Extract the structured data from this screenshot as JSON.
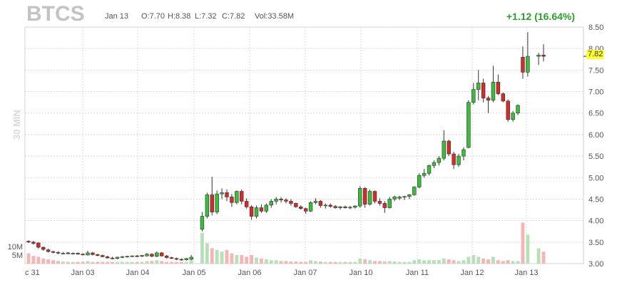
{
  "header": {
    "ticker": "BTCS",
    "date": "Jan 13",
    "open": "O:7.70",
    "high": "H:8.38",
    "low": "L:7.32",
    "close": "C:7.82",
    "volume": "Vol:33.58M",
    "change": "+1.12 (16.64%)",
    "timeframe": "30 MIN",
    "last_price": "7.82"
  },
  "colors": {
    "up": "#3cbc3c",
    "down": "#d42b2b",
    "up_vol": "#b9dfb9",
    "down_vol": "#f3b5b5",
    "grid": "#d8d8d8"
  },
  "chart_data": {
    "type": "candlestick",
    "ylim": [
      3.0,
      8.5
    ],
    "yticks": [
      "8.50",
      "8.00",
      "7.50",
      "7.00",
      "6.50",
      "6.00",
      "5.50",
      "5.00",
      "4.50",
      "4.00",
      "3.50",
      "3.00"
    ],
    "volume_ticks": [
      "10M",
      "5M"
    ],
    "xticks": [
      "c 31",
      "Jan 03",
      "Jan 04",
      "Jan 05",
      "Jan 06",
      "Jan 07",
      "Jan 10",
      "Jan 11",
      "Jan 12",
      "Jan 13"
    ],
    "candles": [
      [
        3.52,
        3.54,
        3.48,
        3.5,
        6.0
      ],
      [
        3.5,
        3.53,
        3.44,
        3.47,
        4.5
      ],
      [
        3.48,
        3.5,
        3.35,
        3.38,
        4.0
      ],
      [
        3.38,
        3.4,
        3.3,
        3.33,
        3.0
      ],
      [
        3.32,
        3.35,
        3.26,
        3.28,
        2.5
      ],
      [
        3.28,
        3.3,
        3.24,
        3.26,
        2.0
      ],
      [
        3.26,
        3.29,
        3.22,
        3.25,
        1.5
      ],
      [
        3.24,
        3.27,
        3.22,
        3.24,
        1.2
      ],
      [
        3.25,
        3.27,
        3.22,
        3.23,
        1.0
      ],
      [
        3.23,
        3.26,
        3.21,
        3.24,
        1.0
      ],
      [
        3.24,
        3.26,
        3.21,
        3.22,
        1.0
      ],
      [
        3.22,
        3.24,
        3.19,
        3.21,
        1.0
      ],
      [
        3.2,
        3.3,
        3.19,
        3.25,
        1.5
      ],
      [
        3.25,
        3.27,
        3.19,
        3.21,
        1.0
      ],
      [
        3.21,
        3.23,
        3.17,
        3.19,
        1.0
      ],
      [
        3.19,
        3.21,
        3.15,
        3.16,
        1.0
      ],
      [
        3.16,
        3.18,
        3.12,
        3.13,
        1.0
      ],
      [
        3.13,
        3.16,
        3.1,
        3.12,
        1.0
      ],
      [
        3.12,
        3.16,
        3.1,
        3.15,
        1.0
      ],
      [
        3.15,
        3.18,
        3.13,
        3.16,
        1.0
      ],
      [
        3.16,
        3.18,
        3.14,
        3.17,
        1.0
      ],
      [
        3.17,
        3.19,
        3.15,
        3.18,
        1.0
      ],
      [
        3.18,
        3.2,
        3.15,
        3.17,
        1.0
      ],
      [
        3.17,
        3.2,
        3.15,
        3.19,
        1.0
      ],
      [
        3.18,
        3.25,
        3.16,
        3.22,
        1.5
      ],
      [
        3.22,
        3.24,
        3.15,
        3.17,
        1.5
      ],
      [
        3.17,
        3.28,
        3.15,
        3.25,
        2.0
      ],
      [
        3.25,
        3.27,
        3.16,
        3.18,
        1.5
      ],
      [
        3.18,
        3.2,
        3.12,
        3.14,
        1.0
      ],
      [
        3.14,
        3.16,
        3.11,
        3.12,
        1.0
      ],
      [
        3.12,
        3.14,
        3.08,
        3.1,
        1.0
      ],
      [
        3.1,
        3.12,
        3.07,
        3.09,
        1.0
      ],
      [
        3.09,
        3.13,
        3.07,
        3.12,
        1.0
      ],
      [
        3.1,
        3.2,
        3.08,
        3.15,
        2.0
      ],
      [
        3.8,
        4.2,
        3.75,
        4.1,
        18.0
      ],
      [
        4.1,
        4.65,
        4.05,
        4.6,
        12.0
      ],
      [
        4.6,
        5.02,
        4.12,
        4.2,
        9.0
      ],
      [
        4.2,
        4.7,
        4.15,
        4.62,
        8.0
      ],
      [
        4.62,
        4.75,
        4.5,
        4.65,
        7.0
      ],
      [
        4.65,
        4.72,
        4.45,
        4.55,
        8.0
      ],
      [
        4.55,
        4.62,
        4.32,
        4.42,
        6.0
      ],
      [
        4.42,
        4.7,
        4.38,
        4.68,
        5.0
      ],
      [
        4.68,
        4.72,
        4.38,
        4.45,
        5.0
      ],
      [
        4.45,
        4.52,
        4.28,
        4.32,
        4.0
      ],
      [
        4.32,
        4.36,
        4.02,
        4.1,
        5.0
      ],
      [
        4.1,
        4.35,
        4.05,
        4.3,
        3.5
      ],
      [
        4.3,
        4.38,
        4.18,
        4.22,
        3.0
      ],
      [
        4.22,
        4.4,
        4.18,
        4.36,
        2.5
      ],
      [
        4.36,
        4.5,
        4.3,
        4.45,
        2.0
      ],
      [
        4.45,
        4.55,
        4.38,
        4.5,
        2.0
      ],
      [
        4.5,
        4.55,
        4.42,
        4.48,
        1.5
      ],
      [
        4.48,
        4.52,
        4.4,
        4.45,
        1.5
      ],
      [
        4.45,
        4.5,
        4.35,
        4.4,
        1.2
      ],
      [
        4.4,
        4.42,
        4.3,
        4.32,
        1.2
      ],
      [
        4.32,
        4.36,
        4.26,
        4.28,
        1.0
      ],
      [
        4.28,
        4.3,
        4.16,
        4.22,
        1.0
      ],
      [
        4.22,
        4.45,
        4.2,
        4.42,
        2.0
      ],
      [
        4.42,
        4.52,
        4.38,
        4.45,
        1.5
      ],
      [
        4.45,
        4.48,
        4.3,
        4.35,
        1.2
      ],
      [
        4.35,
        4.4,
        4.28,
        4.36,
        1.0
      ],
      [
        4.36,
        4.4,
        4.3,
        4.33,
        1.0
      ],
      [
        4.33,
        4.36,
        4.28,
        4.3,
        1.0
      ],
      [
        4.3,
        4.34,
        4.26,
        4.32,
        1.0
      ],
      [
        4.32,
        4.35,
        4.28,
        4.3,
        1.0
      ],
      [
        4.3,
        4.34,
        4.27,
        4.31,
        1.0
      ],
      [
        4.31,
        4.36,
        4.28,
        4.34,
        1.0
      ],
      [
        4.34,
        4.8,
        4.3,
        4.75,
        3.0
      ],
      [
        4.75,
        4.78,
        4.3,
        4.38,
        2.5
      ],
      [
        4.38,
        4.72,
        4.35,
        4.68,
        2.0
      ],
      [
        4.68,
        4.7,
        4.4,
        4.45,
        1.5
      ],
      [
        4.45,
        4.52,
        4.35,
        4.4,
        1.5
      ],
      [
        4.4,
        4.45,
        4.18,
        4.3,
        1.2
      ],
      [
        4.3,
        4.55,
        4.28,
        4.5,
        1.5
      ],
      [
        4.5,
        4.58,
        4.45,
        4.55,
        1.2
      ],
      [
        4.52,
        4.58,
        4.48,
        4.55,
        1.0
      ],
      [
        4.55,
        4.58,
        4.48,
        4.56,
        1.0
      ],
      [
        4.56,
        4.62,
        4.5,
        4.6,
        1.0
      ],
      [
        4.6,
        4.8,
        4.58,
        4.78,
        2.0
      ],
      [
        4.78,
        5.1,
        4.75,
        5.05,
        2.5
      ],
      [
        5.05,
        5.2,
        5.0,
        5.1,
        2.0
      ],
      [
        5.1,
        5.3,
        5.05,
        5.28,
        2.0
      ],
      [
        5.28,
        5.4,
        5.22,
        5.35,
        2.0
      ],
      [
        5.35,
        5.5,
        5.28,
        5.45,
        2.0
      ],
      [
        5.45,
        6.1,
        5.4,
        5.85,
        3.0
      ],
      [
        5.85,
        5.88,
        5.5,
        5.55,
        2.5
      ],
      [
        5.55,
        5.6,
        5.2,
        5.3,
        2.0
      ],
      [
        5.3,
        5.55,
        5.25,
        5.5,
        1.5
      ],
      [
        5.5,
        5.7,
        5.4,
        5.65,
        2.0
      ],
      [
        5.7,
        6.8,
        5.68,
        6.75,
        4.0
      ],
      [
        6.75,
        7.2,
        6.7,
        7.05,
        5.0
      ],
      [
        7.05,
        7.5,
        6.8,
        7.2,
        4.0
      ],
      [
        7.2,
        7.3,
        6.75,
        6.85,
        3.0
      ],
      [
        6.85,
        6.9,
        6.5,
        6.8,
        2.5
      ],
      [
        6.8,
        7.6,
        6.75,
        7.22,
        4.0
      ],
      [
        7.22,
        7.4,
        6.92,
        6.95,
        2.0
      ],
      [
        6.95,
        6.98,
        6.75,
        6.78,
        1.5
      ],
      [
        6.78,
        6.82,
        6.3,
        6.35,
        2.0
      ],
      [
        6.35,
        6.55,
        6.3,
        6.5,
        1.5
      ],
      [
        6.5,
        6.7,
        6.45,
        6.68,
        1.5
      ],
      [
        7.8,
        8.05,
        7.3,
        7.45,
        24.0
      ],
      [
        7.45,
        8.38,
        7.35,
        7.82,
        17.0
      ],
      [
        7.82,
        7.9,
        7.62,
        7.85,
        9.0
      ],
      [
        7.85,
        8.1,
        7.7,
        7.82,
        7.0
      ]
    ],
    "gaps_after": [
      33,
      100
    ]
  }
}
